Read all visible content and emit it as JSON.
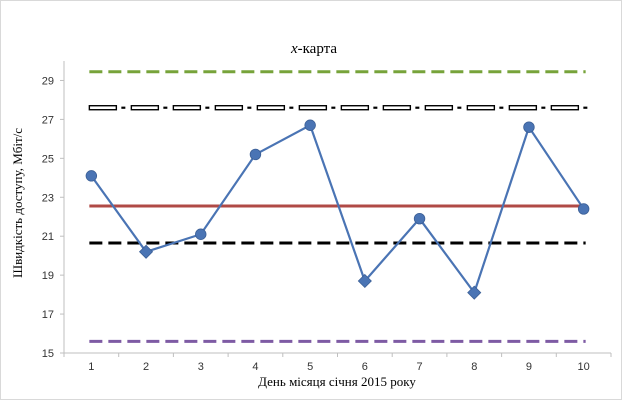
{
  "chart_data": {
    "type": "line",
    "title_var": "x",
    "title_rest": "-карта",
    "xlabel": "День місяця січня 2015 року",
    "ylabel": "Швидкість доступу, Мбіт/с",
    "x": [
      1,
      2,
      3,
      4,
      5,
      6,
      7,
      8,
      9,
      10
    ],
    "ylim": [
      15,
      30
    ],
    "yticks": [
      15,
      17,
      19,
      21,
      23,
      25,
      27,
      29
    ],
    "series": [
      {
        "values": [
          24.1,
          20.2,
          21.1,
          25.2,
          26.7,
          18.7,
          21.9,
          18.1,
          26.6,
          22.4
        ],
        "markers": [
          "circle",
          "diamond",
          "circle",
          "circle",
          "circle",
          "diamond",
          "circle",
          "diamond",
          "circle",
          "circle"
        ],
        "color": "#4a74b4"
      }
    ],
    "reference_lines": [
      {
        "value": 29.45,
        "color": "#77a33a",
        "style": "dashed"
      },
      {
        "value": 27.6,
        "color": "#000000",
        "style": "dash-dot-double"
      },
      {
        "value": 22.55,
        "color": "#b04a46",
        "style": "solid"
      },
      {
        "value": 20.65,
        "color": "#000000",
        "style": "dashed"
      },
      {
        "value": 15.6,
        "color": "#7e5ba4",
        "style": "dashed"
      }
    ],
    "grid": false,
    "legend": "none"
  }
}
